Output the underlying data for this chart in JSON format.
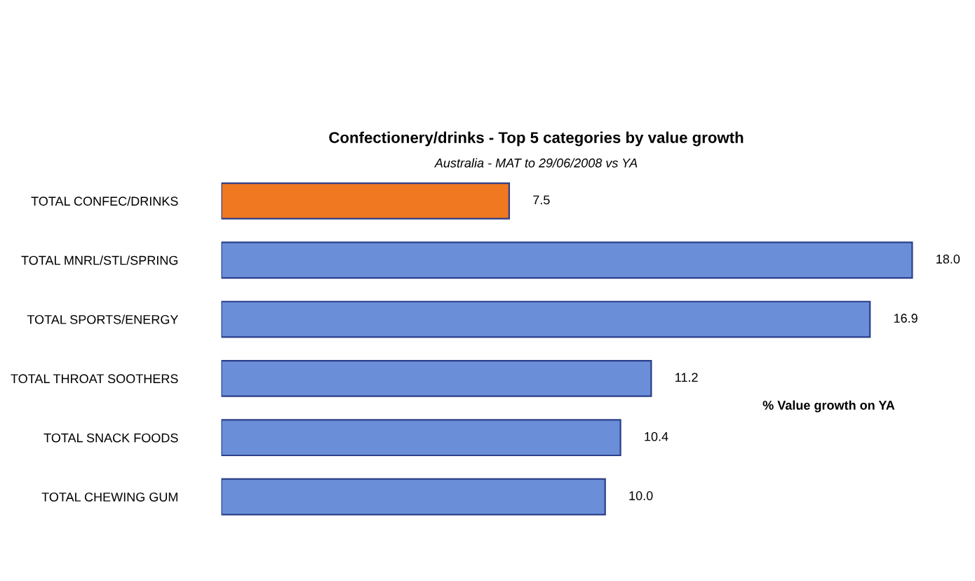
{
  "chart_data": {
    "type": "bar",
    "orientation": "horizontal",
    "title": "Confectionery/drinks - Top 5 categories by value growth",
    "subtitle": "Australia - MAT to 29/06/2008 vs YA",
    "categories": [
      "TOTAL CONFEC/DRINKS",
      "TOTAL MNRL/STL/SPRING",
      "TOTAL SPORTS/ENERGY",
      "TOTAL THROAT SOOTHERS",
      "TOTAL SNACK FOODS",
      "TOTAL CHEWING GUM"
    ],
    "values": [
      7.5,
      18.0,
      16.9,
      11.2,
      10.4,
      10.0
    ],
    "value_labels": [
      "7.5",
      "18.0",
      "16.9",
      "11.2",
      "10.4",
      "10.0"
    ],
    "colors": [
      "#f07820",
      "#6a8fd8",
      "#6a8fd8",
      "#6a8fd8",
      "#6a8fd8",
      "#6a8fd8"
    ],
    "tick_labels": "y",
    "grid": false,
    "legend": false,
    "annotations": [
      "% Value growth on YA"
    ]
  }
}
